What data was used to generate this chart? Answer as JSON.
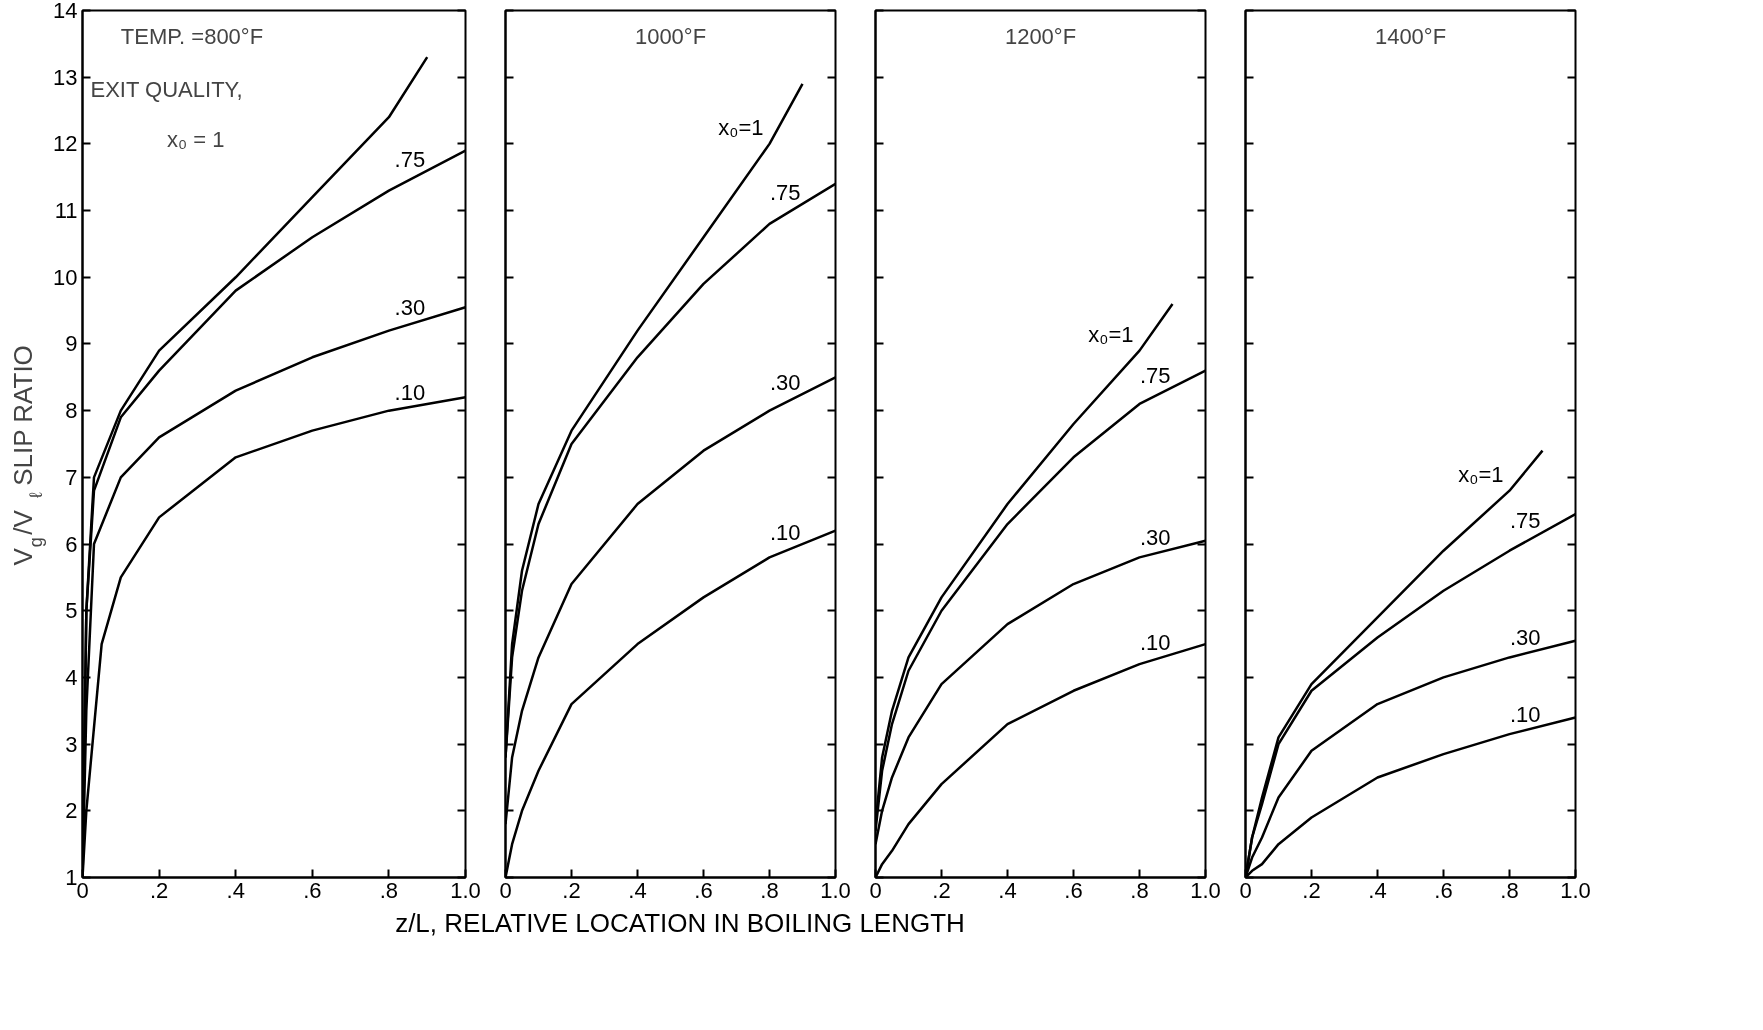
{
  "chart_data": [
    {
      "type": "line",
      "title": "TEMP. =800°F",
      "ylabel": "V$_{g}$/V$_{ℓ}$ SLIP RATIO",
      "annotations": [
        "EXIT QUALITY,",
        "x₀ = 1"
      ],
      "xlim": [
        0,
        1
      ],
      "ylim": [
        1,
        14
      ],
      "xticks": [
        {
          "value": 0,
          "label": "0"
        },
        {
          "value": 0.2,
          "label": ".2"
        },
        {
          "value": 0.4,
          "label": ".4"
        },
        {
          "value": 0.6,
          "label": ".6"
        },
        {
          "value": 0.8,
          "label": ".8"
        },
        {
          "value": 1,
          "label": "1.0"
        }
      ],
      "yticks": [
        1,
        2,
        3,
        4,
        5,
        6,
        7,
        8,
        9,
        10,
        11,
        12,
        13,
        14
      ],
      "grid": false,
      "series": [
        {
          "color": "#000000",
          "x": [
            0,
            0.01,
            0.03,
            0.1,
            0.2,
            0.4,
            0.6,
            0.8,
            0.9
          ],
          "values": [
            1,
            5,
            7,
            8,
            8.9,
            10,
            11.2,
            12.4,
            13.3
          ]
        },
        {
          "name": ".75",
          "color": "#000000",
          "x": [
            0,
            0.01,
            0.03,
            0.1,
            0.2,
            0.4,
            0.6,
            0.8,
            1
          ],
          "values": [
            1,
            5,
            6.8,
            7.9,
            8.6,
            9.8,
            10.6,
            11.3,
            11.9
          ]
        },
        {
          "name": ".30",
          "color": "#000000",
          "x": [
            0,
            0.01,
            0.03,
            0.1,
            0.2,
            0.4,
            0.6,
            0.8,
            1
          ],
          "values": [
            1,
            3.5,
            6,
            7,
            7.6,
            8.3,
            8.8,
            9.2,
            9.55
          ]
        },
        {
          "name": ".10",
          "color": "#000000",
          "x": [
            0,
            0.01,
            0.05,
            0.1,
            0.2,
            0.4,
            0.6,
            0.8,
            1
          ],
          "values": [
            1,
            2,
            4.5,
            5.5,
            6.4,
            7.3,
            7.7,
            8,
            8.2
          ]
        }
      ]
    },
    {
      "type": "line",
      "title": "1000°F",
      "xlabel": "z/L, RELATIVE LOCATION IN BOILING LENGTH",
      "xlim": [
        0,
        1
      ],
      "ylim": [
        1,
        14
      ],
      "xticks": [
        {
          "value": 0,
          "label": "0"
        },
        {
          "value": 0.2,
          "label": ".2"
        },
        {
          "value": 0.4,
          "label": ".4"
        },
        {
          "value": 0.6,
          "label": ".6"
        },
        {
          "value": 0.8,
          "label": ".8"
        },
        {
          "value": 1,
          "label": "1.0"
        }
      ],
      "yticks": [
        {
          "value": 1,
          "label": null
        },
        {
          "value": 2,
          "label": null
        },
        {
          "value": 3,
          "label": null
        },
        {
          "value": 4,
          "label": null
        },
        {
          "value": 5,
          "label": null
        },
        {
          "value": 6,
          "label": null
        },
        {
          "value": 7,
          "label": null
        },
        {
          "value": 8,
          "label": null
        },
        {
          "value": 9,
          "label": null
        },
        {
          "value": 10,
          "label": null
        },
        {
          "value": 11,
          "label": null
        },
        {
          "value": 12,
          "label": null
        },
        {
          "value": 13,
          "label": null
        },
        {
          "value": 14,
          "label": null
        }
      ],
      "tick_labels": "x",
      "grid": false,
      "series": [
        {
          "name": "x₀=1",
          "color": "#000000",
          "x": [
            0,
            0.02,
            0.05,
            0.1,
            0.2,
            0.4,
            0.6,
            0.8,
            0.9
          ],
          "values": [
            2.8,
            4.5,
            5.6,
            6.6,
            7.7,
            9.2,
            10.6,
            12,
            12.9
          ]
        },
        {
          "name": ".75",
          "color": "#000000",
          "x": [
            0,
            0.02,
            0.05,
            0.1,
            0.2,
            0.4,
            0.6,
            0.8,
            1
          ],
          "values": [
            2.8,
            4.3,
            5.3,
            6.3,
            7.5,
            8.8,
            9.9,
            10.8,
            11.4
          ]
        },
        {
          "name": ".30",
          "color": "#000000",
          "x": [
            0,
            0.02,
            0.05,
            0.1,
            0.2,
            0.4,
            0.6,
            0.8,
            1
          ],
          "values": [
            1.8,
            2.8,
            3.5,
            4.3,
            5.4,
            6.6,
            7.4,
            8,
            8.5
          ]
        },
        {
          "name": ".10",
          "color": "#000000",
          "x": [
            0,
            0.02,
            0.05,
            0.1,
            0.2,
            0.4,
            0.6,
            0.8,
            1
          ],
          "values": [
            1,
            1.5,
            2,
            2.6,
            3.6,
            4.5,
            5.2,
            5.8,
            6.2
          ]
        }
      ]
    },
    {
      "type": "line",
      "title": "1200°F",
      "xlim": [
        0,
        1
      ],
      "ylim": [
        1,
        14
      ],
      "xticks": [
        {
          "value": 0,
          "label": "0"
        },
        {
          "value": 0.2,
          "label": ".2"
        },
        {
          "value": 0.4,
          "label": ".4"
        },
        {
          "value": 0.6,
          "label": ".6"
        },
        {
          "value": 0.8,
          "label": ".8"
        },
        {
          "value": 1,
          "label": "1.0"
        }
      ],
      "yticks": [
        {
          "value": 1,
          "label": null
        },
        {
          "value": 2,
          "label": null
        },
        {
          "value": 3,
          "label": null
        },
        {
          "value": 4,
          "label": null
        },
        {
          "value": 5,
          "label": null
        },
        {
          "value": 6,
          "label": null
        },
        {
          "value": 7,
          "label": null
        },
        {
          "value": 8,
          "label": null
        },
        {
          "value": 9,
          "label": null
        },
        {
          "value": 10,
          "label": null
        },
        {
          "value": 11,
          "label": null
        },
        {
          "value": 12,
          "label": null
        },
        {
          "value": 13,
          "label": null
        },
        {
          "value": 14,
          "label": null
        }
      ],
      "tick_labels": "x",
      "grid": false,
      "series": [
        {
          "name": "x₀=1",
          "color": "#000000",
          "x": [
            0,
            0.02,
            0.05,
            0.1,
            0.2,
            0.4,
            0.6,
            0.8,
            0.9
          ],
          "values": [
            1.8,
            2.8,
            3.5,
            4.3,
            5.2,
            6.6,
            7.8,
            8.9,
            9.6
          ]
        },
        {
          "name": ".75",
          "color": "#000000",
          "x": [
            0,
            0.02,
            0.05,
            0.1,
            0.2,
            0.4,
            0.6,
            0.8,
            1
          ],
          "values": [
            1.7,
            2.6,
            3.3,
            4.1,
            5,
            6.3,
            7.3,
            8.1,
            8.6
          ]
        },
        {
          "name": ".30",
          "color": "#000000",
          "x": [
            0,
            0.02,
            0.05,
            0.1,
            0.2,
            0.4,
            0.6,
            0.8,
            1
          ],
          "values": [
            1.5,
            2,
            2.5,
            3.1,
            3.9,
            4.8,
            5.4,
            5.8,
            6.05
          ]
        },
        {
          "name": ".10",
          "color": "#000000",
          "x": [
            0,
            0.02,
            0.05,
            0.1,
            0.2,
            0.4,
            0.6,
            0.8,
            1
          ],
          "values": [
            1,
            1.2,
            1.4,
            1.8,
            2.4,
            3.3,
            3.8,
            4.2,
            4.5
          ]
        }
      ]
    },
    {
      "type": "line",
      "title": "1400°F",
      "xlim": [
        0,
        1
      ],
      "ylim": [
        1,
        14
      ],
      "xticks": [
        {
          "value": 0,
          "label": "0"
        },
        {
          "value": 0.2,
          "label": ".2"
        },
        {
          "value": 0.4,
          "label": ".4"
        },
        {
          "value": 0.6,
          "label": ".6"
        },
        {
          "value": 0.8,
          "label": ".8"
        },
        {
          "value": 1,
          "label": "1.0"
        }
      ],
      "yticks": [
        {
          "value": 1,
          "label": null
        },
        {
          "value": 2,
          "label": null
        },
        {
          "value": 3,
          "label": null
        },
        {
          "value": 4,
          "label": null
        },
        {
          "value": 5,
          "label": null
        },
        {
          "value": 6,
          "label": null
        },
        {
          "value": 7,
          "label": null
        },
        {
          "value": 8,
          "label": null
        },
        {
          "value": 9,
          "label": null
        },
        {
          "value": 10,
          "label": null
        },
        {
          "value": 11,
          "label": null
        },
        {
          "value": 12,
          "label": null
        },
        {
          "value": 13,
          "label": null
        },
        {
          "value": 14,
          "label": null
        }
      ],
      "tick_labels": "x",
      "grid": false,
      "series": [
        {
          "name": "x₀=1",
          "color": "#000000",
          "x": [
            0,
            0.02,
            0.05,
            0.1,
            0.2,
            0.4,
            0.6,
            0.8,
            0.9
          ],
          "values": [
            1,
            1.6,
            2.2,
            3.1,
            3.9,
            4.9,
            5.9,
            6.8,
            7.4
          ]
        },
        {
          "name": ".75",
          "color": "#000000",
          "x": [
            0,
            0.02,
            0.05,
            0.1,
            0.2,
            0.4,
            0.6,
            0.8,
            1
          ],
          "values": [
            1,
            1.6,
            2.1,
            3,
            3.8,
            4.6,
            5.3,
            5.9,
            6.45
          ]
        },
        {
          "name": ".30",
          "color": "#000000",
          "x": [
            0,
            0.02,
            0.05,
            0.1,
            0.2,
            0.4,
            0.6,
            0.8,
            1
          ],
          "values": [
            1,
            1.3,
            1.6,
            2.2,
            2.9,
            3.6,
            4,
            4.3,
            4.55
          ]
        },
        {
          "name": ".10",
          "color": "#000000",
          "x": [
            0,
            0.02,
            0.05,
            0.1,
            0.2,
            0.4,
            0.6,
            0.8,
            1
          ],
          "values": [
            1,
            1.1,
            1.2,
            1.5,
            1.9,
            2.5,
            2.85,
            3.15,
            3.4
          ]
        }
      ]
    }
  ]
}
